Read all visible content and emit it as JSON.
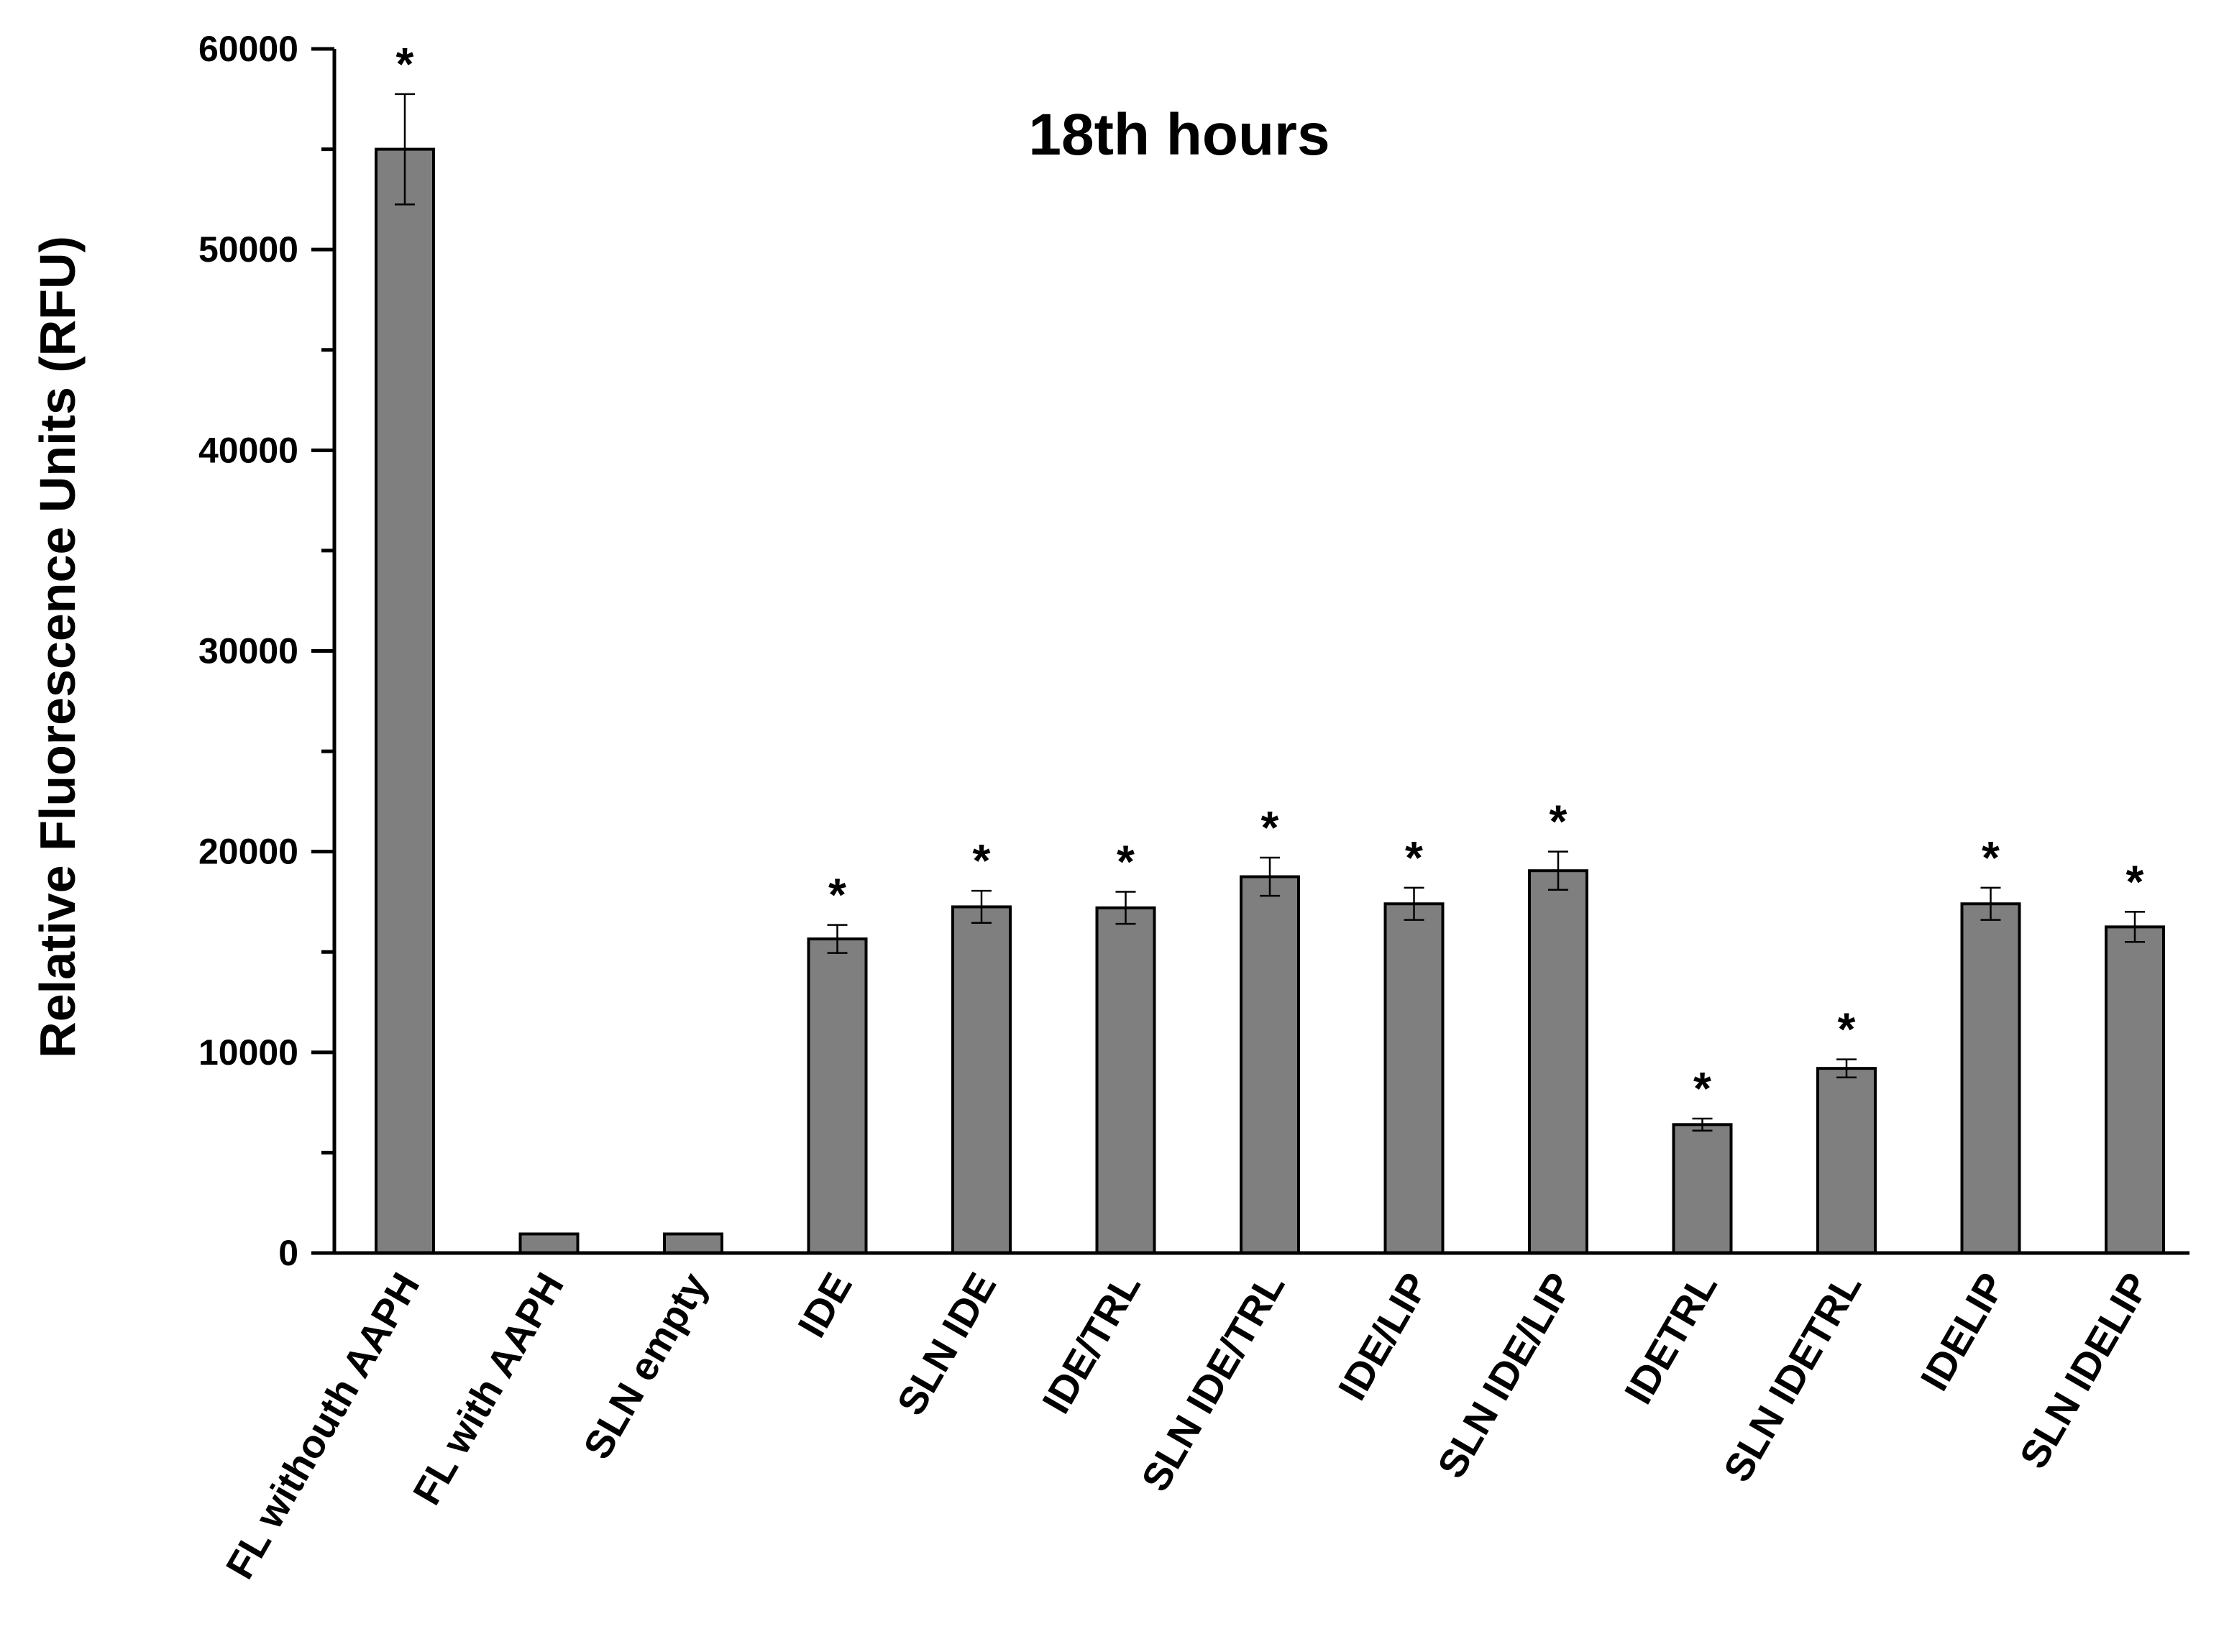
{
  "chart_data": {
    "type": "bar",
    "title": "18th hours",
    "xlabel": "",
    "ylabel": "Relative Fluorescence Units (RFU)",
    "ylim": [
      0,
      60000
    ],
    "yticks": [
      0,
      10000,
      20000,
      30000,
      40000,
      50000,
      60000
    ],
    "grid": false,
    "bar_color": "#7f7f7f",
    "categories": [
      "FL withouth AAPH",
      "FL with AAPH",
      "SLN empty",
      "IDE",
      "SLN IDE",
      "IDE/TRL",
      "SLN IDE/TRL",
      "IDE/LIP",
      "SLN IDE/LIP",
      "IDETRL",
      "SLN IDETRL",
      "IDELIP",
      "SLN IDELIP"
    ],
    "values": [
      55000,
      950,
      950,
      15650,
      17250,
      17200,
      18750,
      17400,
      19050,
      6400,
      9200,
      17400,
      16250
    ],
    "errors": [
      2750,
      0,
      0,
      700,
      800,
      800,
      950,
      800,
      950,
      300,
      450,
      800,
      750
    ],
    "annotations": [
      "*",
      "",
      "",
      "*",
      "*",
      "*",
      "*",
      "*",
      "*",
      "*",
      "*",
      "*",
      "*"
    ]
  }
}
